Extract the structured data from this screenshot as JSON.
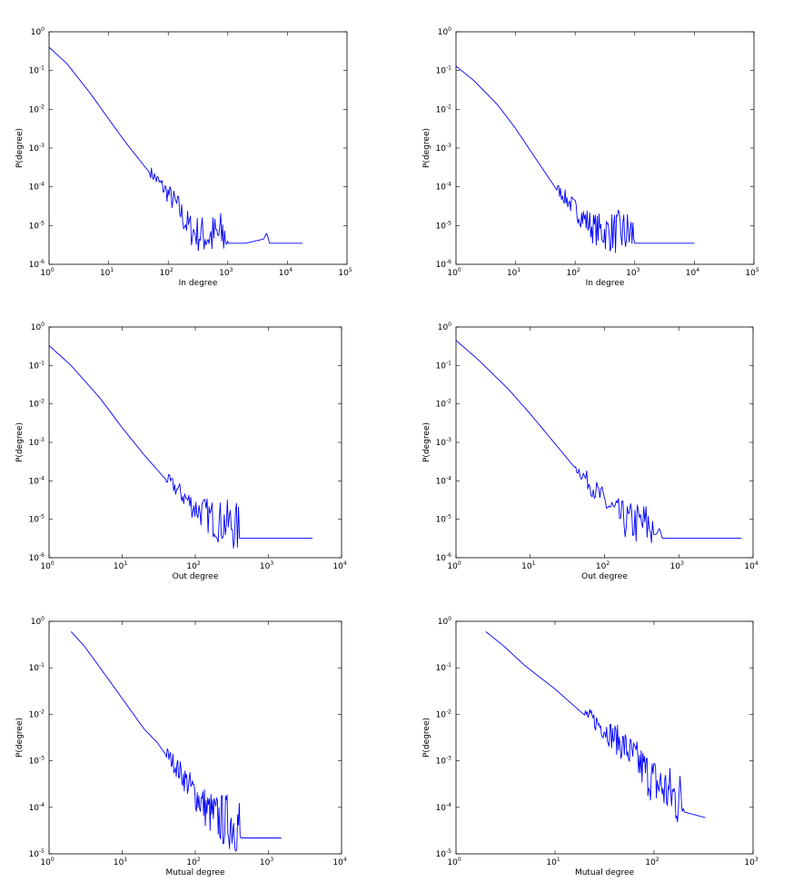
{
  "chart_data": [
    {
      "type": "line",
      "xscale": "log",
      "yscale": "log",
      "xlabel": "In degree",
      "ylabel": "P(degree)",
      "xlim": [
        1,
        100000
      ],
      "ylim": [
        1e-06,
        1
      ],
      "series": [
        {
          "color": "#0000ff",
          "x": [
            1,
            2,
            5,
            10,
            20,
            50,
            100,
            150,
            200,
            250,
            300,
            500,
            1000,
            2000,
            4000,
            4500,
            5000,
            10000,
            18000
          ],
          "y": [
            0.4,
            0.15,
            0.025,
            0.0056,
            0.0013,
            0.00022,
            5.5e-05,
            2.2e-05,
            8.5e-06,
            5.5e-06,
            4.5e-06,
            3.5e-06,
            3.5e-06,
            3.5e-06,
            4.5e-06,
            6.5e-06,
            3.5e-06,
            3.5e-06,
            3.5e-06
          ],
          "noise_from": 50,
          "noise_to": 1000
        }
      ]
    },
    {
      "type": "line",
      "xscale": "log",
      "yscale": "log",
      "xlabel": "In degree",
      "ylabel": "P(degree)",
      "xlim": [
        1,
        100000
      ],
      "ylim": [
        1e-06,
        1
      ],
      "series": [
        {
          "color": "#0000ff",
          "x": [
            1,
            2,
            5,
            10,
            20,
            50,
            100,
            200,
            300,
            500,
            1000,
            10000
          ],
          "y": [
            0.13,
            0.055,
            0.013,
            0.0032,
            0.00065,
            8e-05,
            2.2e-05,
            6.5e-06,
            5e-06,
            4.5e-06,
            3.5e-06,
            3.5e-06
          ],
          "noise_from": 50,
          "noise_to": 1000
        }
      ]
    },
    {
      "type": "line",
      "xscale": "log",
      "yscale": "log",
      "xlabel": "Out degree",
      "ylabel": "P(degree)",
      "xlim": [
        1,
        10000
      ],
      "ylim": [
        1e-06,
        1
      ],
      "series": [
        {
          "color": "#0000ff",
          "x": [
            1,
            2,
            5,
            10,
            20,
            50,
            100,
            150,
            200,
            300,
            400,
            1000,
            4000
          ],
          "y": [
            0.33,
            0.1,
            0.014,
            0.0024,
            0.00047,
            6.5e-05,
            1.5e-05,
            9e-06,
            6e-06,
            5e-06,
            3.2e-06,
            3.2e-06,
            3.2e-06
          ],
          "noise_from": 40,
          "noise_to": 400
        }
      ]
    },
    {
      "type": "line",
      "xscale": "log",
      "yscale": "log",
      "xlabel": "Out degree",
      "ylabel": "P(degree)",
      "xlim": [
        1,
        10000
      ],
      "ylim": [
        1e-06,
        1
      ],
      "series": [
        {
          "color": "#0000ff",
          "x": [
            1,
            2,
            5,
            10,
            20,
            50,
            100,
            150,
            200,
            400,
            500,
            550,
            600,
            1000,
            7000
          ],
          "y": [
            0.45,
            0.14,
            0.025,
            0.0055,
            0.0011,
            0.00013,
            2.2e-05,
            9.5e-06,
            6e-06,
            4.2e-06,
            4e-06,
            6e-06,
            3.2e-06,
            3.2e-06,
            3.2e-06
          ],
          "noise_from": 40,
          "noise_to": 450
        }
      ]
    },
    {
      "type": "line",
      "xscale": "log",
      "yscale": "log",
      "xlabel": "Mutual degree",
      "ylabel": "P(degree)",
      "xlim": [
        1,
        10000
      ],
      "ylim": [
        1e-05,
        1
      ],
      "series": [
        {
          "color": "#0000ff",
          "x": [
            2,
            3,
            5,
            10,
            20,
            30,
            50,
            100,
            150,
            200,
            250,
            400,
            420,
            1500
          ],
          "y": [
            0.6,
            0.3,
            0.1,
            0.022,
            0.0048,
            0.0025,
            0.0008,
            0.00015,
            6e-05,
            4e-05,
            3.5e-05,
            2.8e-05,
            2.2e-05,
            2.2e-05
          ],
          "noise_from": 40,
          "noise_to": 400
        }
      ]
    },
    {
      "type": "line",
      "xscale": "log",
      "yscale": "log",
      "xlabel": "Mutual degree",
      "ylabel": "P(degree)",
      "xlim": [
        1,
        1000
      ],
      "ylim": [
        1e-05,
        1
      ],
      "series": [
        {
          "color": "#0000ff",
          "x": [
            2,
            3,
            5,
            10,
            20,
            30,
            50,
            80,
            100,
            150,
            200,
            330
          ],
          "y": [
            0.6,
            0.3,
            0.11,
            0.035,
            0.0095,
            0.0045,
            0.0016,
            0.00045,
            0.00025,
            0.00012,
            8e-05,
            6e-05
          ],
          "noise_from": 20,
          "noise_to": 200
        }
      ]
    }
  ]
}
